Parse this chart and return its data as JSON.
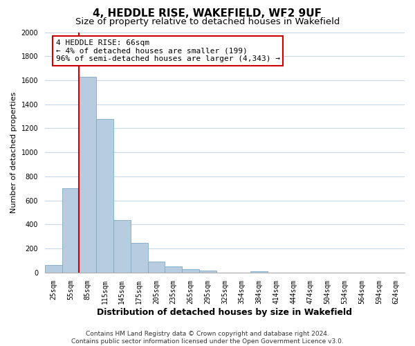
{
  "title": "4, HEDDLE RISE, WAKEFIELD, WF2 9UF",
  "subtitle": "Size of property relative to detached houses in Wakefield",
  "xlabel": "Distribution of detached houses by size in Wakefield",
  "ylabel": "Number of detached properties",
  "bar_labels": [
    "25sqm",
    "55sqm",
    "85sqm",
    "115sqm",
    "145sqm",
    "175sqm",
    "205sqm",
    "235sqm",
    "265sqm",
    "295sqm",
    "325sqm",
    "354sqm",
    "384sqm",
    "414sqm",
    "444sqm",
    "474sqm",
    "504sqm",
    "534sqm",
    "564sqm",
    "594sqm",
    "624sqm"
  ],
  "bar_heights": [
    65,
    700,
    1630,
    1280,
    435,
    250,
    90,
    50,
    28,
    18,
    0,
    0,
    12,
    0,
    0,
    0,
    0,
    0,
    0,
    0,
    0
  ],
  "bar_color": "#b8ccdf",
  "bar_edge_color": "#7aaac8",
  "vline_color": "#cc0000",
  "vline_x": 1.5,
  "annotation_title": "4 HEDDLE RISE: 66sqm",
  "annotation_line1": "← 4% of detached houses are smaller (199)",
  "annotation_line2": "96% of semi-detached houses are larger (4,343) →",
  "annotation_box_facecolor": "#ffffff",
  "annotation_box_edgecolor": "#cc0000",
  "ylim": [
    0,
    2000
  ],
  "yticks": [
    0,
    200,
    400,
    600,
    800,
    1000,
    1200,
    1400,
    1600,
    1800,
    2000
  ],
  "footer1": "Contains HM Land Registry data © Crown copyright and database right 2024.",
  "footer2": "Contains public sector information licensed under the Open Government Licence v3.0.",
  "bg_color": "#ffffff",
  "grid_color": "#c8d8e8",
  "title_fontsize": 11,
  "subtitle_fontsize": 9.5,
  "xlabel_fontsize": 9,
  "ylabel_fontsize": 8,
  "tick_fontsize": 7,
  "annotation_fontsize": 8,
  "footer_fontsize": 6.5
}
